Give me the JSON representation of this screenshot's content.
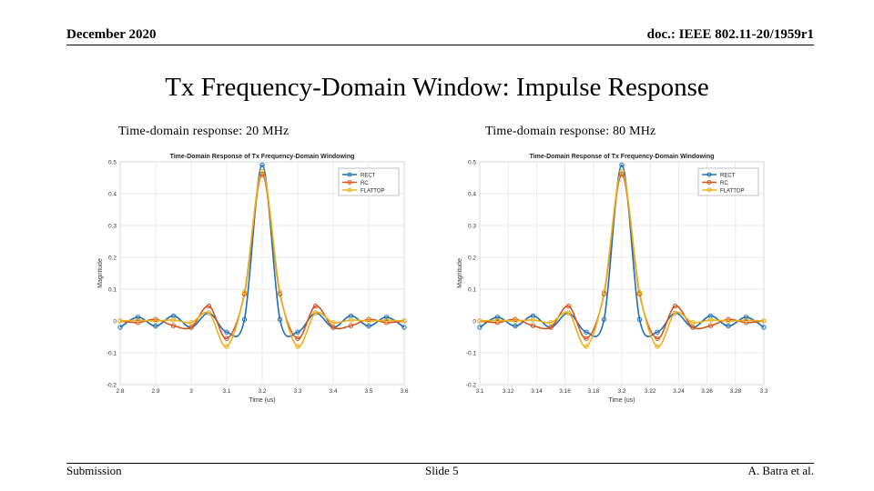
{
  "header": {
    "date": "December 2020",
    "doc": "doc.: IEEE 802.11-20/1959r1"
  },
  "title": "Tx Frequency-Domain Window: Impulse Response",
  "subtitles": [
    "Time-domain response: 20 MHz",
    "Time-domain response: 80 MHz"
  ],
  "footer": {
    "left": "Submission",
    "center": "Slide 5",
    "right": "A. Batra et al."
  },
  "colors": {
    "RECT": "#1f6fb4",
    "RC": "#d6541c",
    "FLATTOP": "#e8b21a"
  },
  "chart_data": [
    {
      "type": "line",
      "title": "Time-Domain Response of Tx Frequency-Domain Windowing",
      "xlabel": "Time (us)",
      "ylabel": "Magnitude",
      "xlim": [
        2.8,
        3.6
      ],
      "ylim": [
        -0.2,
        0.5
      ],
      "xticks": [
        "2.8",
        "2.9",
        "3",
        "3.1",
        "3.2",
        "3.3",
        "3.4",
        "3.5",
        "3.6"
      ],
      "yticks": [
        "0.5",
        "0.4",
        "0.3",
        "0.2",
        "0.1",
        "0",
        "-0.1",
        "-0.2"
      ],
      "grid": true,
      "legend_position": "top-right",
      "series": [
        {
          "name": "RECT",
          "x": [
            2.8,
            2.85,
            2.9,
            2.95,
            3.0,
            3.05,
            3.1,
            3.15,
            3.2,
            3.25,
            3.3,
            3.35,
            3.4,
            3.45,
            3.5,
            3.55,
            3.6
          ],
          "y": [
            -0.02,
            0.012,
            -0.016,
            0.016,
            -0.02,
            0.025,
            -0.035,
            0.005,
            0.49,
            0.005,
            -0.035,
            0.025,
            -0.02,
            0.016,
            -0.016,
            0.012,
            -0.02
          ]
        },
        {
          "name": "RC",
          "x": [
            2.8,
            2.85,
            2.9,
            2.95,
            3.0,
            3.05,
            3.1,
            3.15,
            3.2,
            3.25,
            3.3,
            3.35,
            3.4,
            3.45,
            3.5,
            3.55,
            3.6
          ],
          "y": [
            0,
            -0.005,
            0.005,
            -0.015,
            -0.02,
            0.047,
            -0.055,
            0.085,
            0.46,
            0.085,
            -0.055,
            0.047,
            -0.02,
            -0.015,
            0.005,
            -0.005,
            0
          ]
        },
        {
          "name": "FLATTOP",
          "x": [
            2.8,
            2.85,
            2.9,
            2.95,
            3.0,
            3.05,
            3.1,
            3.15,
            3.2,
            3.25,
            3.3,
            3.35,
            3.4,
            3.45,
            3.5,
            3.55,
            3.6
          ],
          "y": [
            0,
            0.002,
            0,
            0.003,
            -0.005,
            0.025,
            -0.08,
            0.09,
            0.47,
            0.09,
            -0.08,
            0.025,
            -0.005,
            0.003,
            0,
            0.002,
            0
          ]
        }
      ]
    },
    {
      "type": "line",
      "title": "Time-Domain Response of Tx Frequency-Domain Windowing",
      "xlabel": "Time (us)",
      "ylabel": "Magnitude",
      "xlim": [
        3.1,
        3.3
      ],
      "ylim": [
        -0.2,
        0.5
      ],
      "xticks": [
        "3.1",
        "3.12",
        "3.14",
        "3.16",
        "3.18",
        "3.2",
        "3.22",
        "3.24",
        "3.26",
        "3.28",
        "3.3"
      ],
      "yticks": [
        "0.5",
        "0.4",
        "0.3",
        "0.2",
        "0.1",
        "0",
        "-0.1",
        "-0.2"
      ],
      "grid": true,
      "legend_position": "top-right",
      "series": [
        {
          "name": "RECT",
          "x": [
            3.1,
            3.1125,
            3.125,
            3.1375,
            3.15,
            3.1625,
            3.175,
            3.1875,
            3.2,
            3.2125,
            3.225,
            3.2375,
            3.25,
            3.2625,
            3.275,
            3.2875,
            3.3
          ],
          "y": [
            -0.02,
            0.012,
            -0.016,
            0.016,
            -0.02,
            0.025,
            -0.035,
            0.005,
            0.49,
            0.005,
            -0.035,
            0.025,
            -0.02,
            0.016,
            -0.016,
            0.012,
            -0.02
          ]
        },
        {
          "name": "RC",
          "x": [
            3.1,
            3.1125,
            3.125,
            3.1375,
            3.15,
            3.1625,
            3.175,
            3.1875,
            3.2,
            3.2125,
            3.225,
            3.2375,
            3.25,
            3.2625,
            3.275,
            3.2875,
            3.3
          ],
          "y": [
            0,
            -0.005,
            0.005,
            -0.015,
            -0.02,
            0.047,
            -0.055,
            0.085,
            0.46,
            0.085,
            -0.055,
            0.047,
            -0.02,
            -0.015,
            0.005,
            -0.005,
            0
          ]
        },
        {
          "name": "FLATTOP",
          "x": [
            3.1,
            3.1125,
            3.125,
            3.1375,
            3.15,
            3.1625,
            3.175,
            3.1875,
            3.2,
            3.2125,
            3.225,
            3.2375,
            3.25,
            3.2625,
            3.275,
            3.2875,
            3.3
          ],
          "y": [
            0,
            0.002,
            0,
            0.003,
            -0.005,
            0.025,
            -0.08,
            0.09,
            0.47,
            0.09,
            -0.08,
            0.025,
            -0.005,
            0.003,
            0,
            0.002,
            0
          ]
        }
      ]
    }
  ]
}
